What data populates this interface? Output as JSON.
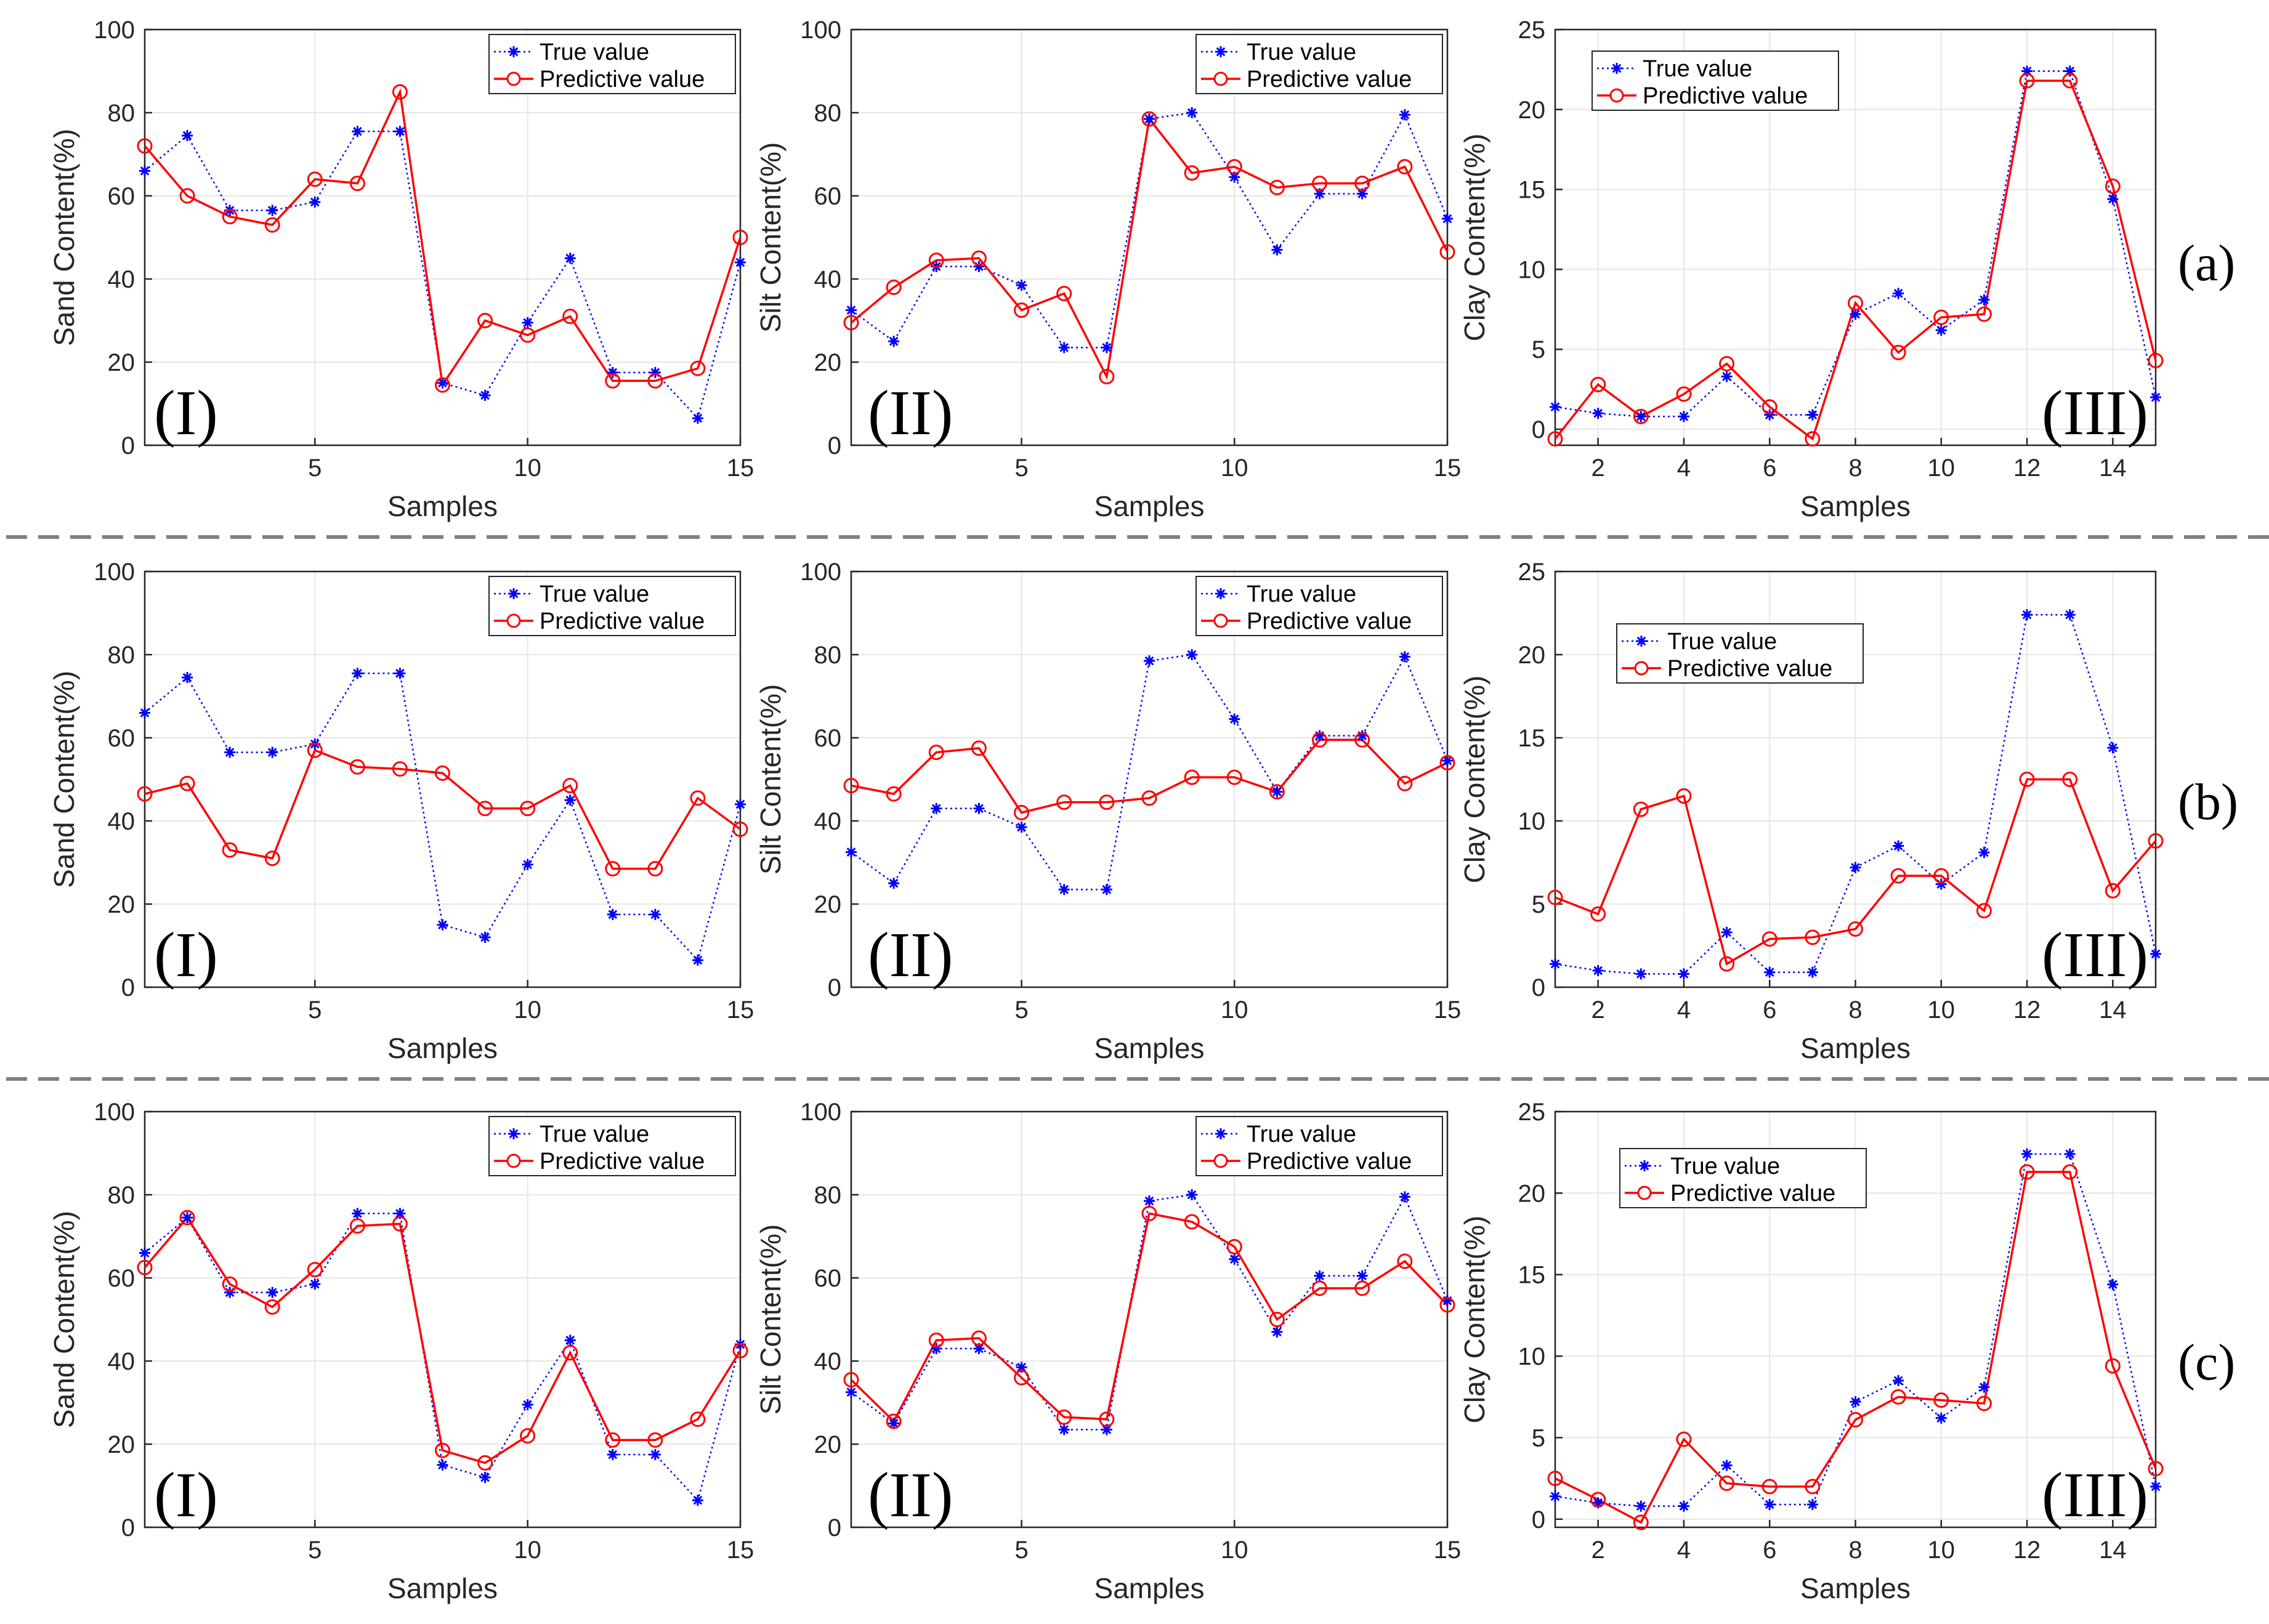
{
  "figure": {
    "row_labels": [
      "(a)",
      "(b)",
      "(c)"
    ],
    "panel_labels": [
      "(I)",
      "(II)",
      "(III)"
    ],
    "legend": {
      "true_label": "True value",
      "pred_label": "Predictive value"
    },
    "colors": {
      "true": "#0000ff",
      "pred": "#ff0000",
      "grid": "#e6e6e6",
      "axis": "#262626",
      "divider": "#808080"
    }
  },
  "chart_data": [
    {
      "type": "line",
      "row": "(a)",
      "panel": "(I)",
      "xlabel": "Samples",
      "ylabel": "Sand Content(%)",
      "xlim": [
        1,
        15
      ],
      "ylim": [
        0,
        100
      ],
      "xticks": [
        5,
        10,
        15
      ],
      "yticks": [
        0,
        20,
        40,
        60,
        80,
        100
      ],
      "x": [
        1,
        2,
        3,
        4,
        5,
        6,
        7,
        8,
        9,
        10,
        11,
        12,
        13,
        14,
        15
      ],
      "series": [
        {
          "name": "True value",
          "values": [
            66,
            74.5,
            56.5,
            56.5,
            58.5,
            75.5,
            75.5,
            15,
            12,
            29.5,
            45,
            17.5,
            17.5,
            6.5,
            44
          ]
        },
        {
          "name": "Predictive value",
          "values": [
            72,
            60,
            55,
            53,
            64,
            63,
            85,
            14.5,
            30,
            26.5,
            31,
            15.5,
            15.5,
            18.5,
            50
          ]
        }
      ]
    },
    {
      "type": "line",
      "row": "(a)",
      "panel": "(II)",
      "xlabel": "Samples",
      "ylabel": "Silt Content(%)",
      "xlim": [
        1,
        15
      ],
      "ylim": [
        0,
        100
      ],
      "xticks": [
        5,
        10,
        15
      ],
      "yticks": [
        0,
        20,
        40,
        60,
        80,
        100
      ],
      "x": [
        1,
        2,
        3,
        4,
        5,
        6,
        7,
        8,
        9,
        10,
        11,
        12,
        13,
        14,
        15
      ],
      "series": [
        {
          "name": "True value",
          "values": [
            32.5,
            25,
            43,
            43,
            38.5,
            23.5,
            23.5,
            78.5,
            80,
            64.5,
            47,
            60.5,
            60.5,
            79.5,
            54.5
          ]
        },
        {
          "name": "Predictive value",
          "values": [
            29.5,
            38,
            44.5,
            45,
            32.5,
            36.5,
            16.5,
            78.5,
            65.5,
            67,
            62,
            63,
            63,
            67,
            46.5
          ]
        }
      ]
    },
    {
      "type": "line",
      "row": "(a)",
      "panel": "(III)",
      "xlabel": "Samples",
      "ylabel": "Clay Content(%)",
      "xlim": [
        1,
        15
      ],
      "ylim": [
        -1,
        25
      ],
      "xticks": [
        2,
        4,
        6,
        8,
        10,
        12,
        14
      ],
      "yticks": [
        0,
        5,
        10,
        15,
        20,
        25
      ],
      "x": [
        1,
        2,
        3,
        4,
        5,
        6,
        7,
        8,
        9,
        10,
        11,
        12,
        13,
        14,
        15
      ],
      "series": [
        {
          "name": "True value",
          "values": [
            1.4,
            1,
            0.8,
            0.8,
            3.3,
            0.9,
            0.9,
            7.2,
            8.5,
            6.2,
            8.1,
            22.4,
            22.4,
            14.4,
            2
          ]
        },
        {
          "name": "Predictive value",
          "values": [
            -0.6,
            2.8,
            0.8,
            2.2,
            4.1,
            1.4,
            -0.6,
            7.9,
            4.8,
            7,
            7.2,
            21.8,
            21.8,
            15.2,
            4.3
          ]
        }
      ]
    },
    {
      "type": "line",
      "row": "(b)",
      "panel": "(I)",
      "xlabel": "Samples",
      "ylabel": "Sand Content(%)",
      "xlim": [
        1,
        15
      ],
      "ylim": [
        0,
        100
      ],
      "xticks": [
        5,
        10,
        15
      ],
      "yticks": [
        0,
        20,
        40,
        60,
        80,
        100
      ],
      "x": [
        1,
        2,
        3,
        4,
        5,
        6,
        7,
        8,
        9,
        10,
        11,
        12,
        13,
        14,
        15
      ],
      "series": [
        {
          "name": "True value",
          "values": [
            66,
            74.5,
            56.5,
            56.5,
            58.5,
            75.5,
            75.5,
            15,
            12,
            29.5,
            45,
            17.5,
            17.5,
            6.5,
            44
          ]
        },
        {
          "name": "Predictive value",
          "values": [
            46.5,
            49,
            33,
            31,
            57,
            53,
            52.5,
            51.5,
            43,
            43,
            48.5,
            28.5,
            28.5,
            45.5,
            38
          ]
        }
      ]
    },
    {
      "type": "line",
      "row": "(b)",
      "panel": "(II)",
      "xlabel": "Samples",
      "ylabel": "Silt Content(%)",
      "xlim": [
        1,
        15
      ],
      "ylim": [
        0,
        100
      ],
      "xticks": [
        5,
        10,
        15
      ],
      "yticks": [
        0,
        20,
        40,
        60,
        80,
        100
      ],
      "x": [
        1,
        2,
        3,
        4,
        5,
        6,
        7,
        8,
        9,
        10,
        11,
        12,
        13,
        14,
        15
      ],
      "series": [
        {
          "name": "True value",
          "values": [
            32.5,
            25,
            43,
            43,
            38.5,
            23.5,
            23.5,
            78.5,
            80,
            64.5,
            47,
            60.5,
            60.5,
            79.5,
            54.5
          ]
        },
        {
          "name": "Predictive value",
          "values": [
            48.5,
            46.5,
            56.5,
            57.5,
            42,
            44.5,
            44.5,
            45.5,
            50.5,
            50.5,
            47,
            59.5,
            59.5,
            49,
            54
          ]
        }
      ]
    },
    {
      "type": "line",
      "row": "(b)",
      "panel": "(III)",
      "xlabel": "Samples",
      "ylabel": "Clay Content(%)",
      "xlim": [
        1,
        15
      ],
      "ylim": [
        0,
        25
      ],
      "xticks": [
        2,
        4,
        6,
        8,
        10,
        12,
        14
      ],
      "yticks": [
        0,
        5,
        10,
        15,
        20,
        25
      ],
      "x": [
        1,
        2,
        3,
        4,
        5,
        6,
        7,
        8,
        9,
        10,
        11,
        12,
        13,
        14,
        15
      ],
      "series": [
        {
          "name": "True value",
          "values": [
            1.4,
            1,
            0.8,
            0.8,
            3.3,
            0.9,
            0.9,
            7.2,
            8.5,
            6.2,
            8.1,
            22.4,
            22.4,
            14.4,
            2
          ]
        },
        {
          "name": "Predictive value",
          "values": [
            5.4,
            4.4,
            10.7,
            11.5,
            1.4,
            2.9,
            3,
            3.5,
            6.7,
            6.7,
            4.6,
            12.5,
            12.5,
            5.8,
            8.8
          ]
        }
      ]
    },
    {
      "type": "line",
      "row": "(c)",
      "panel": "(I)",
      "xlabel": "Samples",
      "ylabel": "Sand Content(%)",
      "xlim": [
        1,
        15
      ],
      "ylim": [
        0,
        100
      ],
      "xticks": [
        5,
        10,
        15
      ],
      "yticks": [
        0,
        20,
        40,
        60,
        80,
        100
      ],
      "x": [
        1,
        2,
        3,
        4,
        5,
        6,
        7,
        8,
        9,
        10,
        11,
        12,
        13,
        14,
        15
      ],
      "series": [
        {
          "name": "True value",
          "values": [
            66,
            74.5,
            56.5,
            56.5,
            58.5,
            75.5,
            75.5,
            15,
            12,
            29.5,
            45,
            17.5,
            17.5,
            6.5,
            44
          ]
        },
        {
          "name": "Predictive value",
          "values": [
            62.5,
            74.5,
            58.5,
            53,
            62,
            72.5,
            73,
            18.5,
            15.5,
            22,
            42,
            21,
            21,
            26,
            42.5
          ]
        }
      ]
    },
    {
      "type": "line",
      "row": "(c)",
      "panel": "(II)",
      "xlabel": "Samples",
      "ylabel": "Silt Content(%)",
      "xlim": [
        1,
        15
      ],
      "ylim": [
        0,
        100
      ],
      "xticks": [
        5,
        10,
        15
      ],
      "yticks": [
        0,
        20,
        40,
        60,
        80,
        100
      ],
      "x": [
        1,
        2,
        3,
        4,
        5,
        6,
        7,
        8,
        9,
        10,
        11,
        12,
        13,
        14,
        15
      ],
      "series": [
        {
          "name": "True value",
          "values": [
            32.5,
            25,
            43,
            43,
            38.5,
            23.5,
            23.5,
            78.5,
            80,
            64.5,
            47,
            60.5,
            60.5,
            79.5,
            54.5
          ]
        },
        {
          "name": "Predictive value",
          "values": [
            35.5,
            25.5,
            45,
            45.5,
            36,
            26.5,
            26,
            75.5,
            73.5,
            67.5,
            50,
            57.5,
            57.5,
            64,
            53.5
          ]
        }
      ]
    },
    {
      "type": "line",
      "row": "(c)",
      "panel": "(III)",
      "xlabel": "Samples",
      "ylabel": "Clay Content(%)",
      "xlim": [
        1,
        15
      ],
      "ylim": [
        -0.5,
        25
      ],
      "xticks": [
        2,
        4,
        6,
        8,
        10,
        12,
        14
      ],
      "yticks": [
        0,
        5,
        10,
        15,
        20,
        25
      ],
      "x": [
        1,
        2,
        3,
        4,
        5,
        6,
        7,
        8,
        9,
        10,
        11,
        12,
        13,
        14,
        15
      ],
      "series": [
        {
          "name": "True value",
          "values": [
            1.4,
            1,
            0.8,
            0.8,
            3.3,
            0.9,
            0.9,
            7.2,
            8.5,
            6.2,
            8.1,
            22.4,
            22.4,
            14.4,
            2
          ]
        },
        {
          "name": "Predictive value",
          "values": [
            2.5,
            1.2,
            -0.2,
            4.9,
            2.2,
            2,
            2,
            6.1,
            7.5,
            7.3,
            7.1,
            21.3,
            21.3,
            9.4,
            3.1
          ]
        }
      ]
    }
  ]
}
